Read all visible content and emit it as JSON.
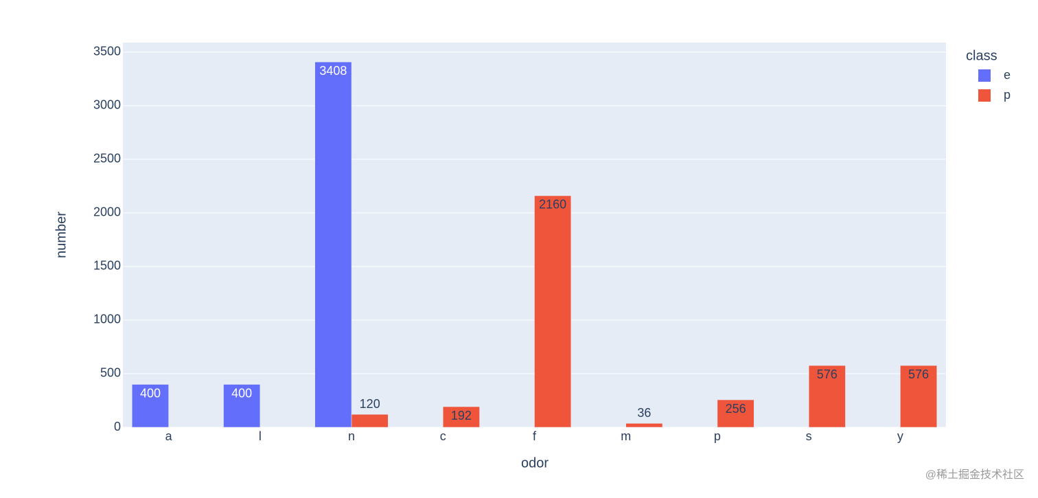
{
  "chart_data": {
    "type": "bar",
    "categories": [
      "a",
      "l",
      "n",
      "c",
      "f",
      "m",
      "p",
      "s",
      "y"
    ],
    "series": [
      {
        "name": "e",
        "color": "#636efa",
        "values": [
          400,
          400,
          3408,
          null,
          null,
          null,
          null,
          null,
          null
        ]
      },
      {
        "name": "p",
        "color": "#ef553b",
        "values": [
          null,
          null,
          120,
          192,
          2160,
          36,
          256,
          576,
          576
        ]
      }
    ],
    "x_label": "odor",
    "y_label": "number",
    "legend_title": "class",
    "ylim": [
      0,
      3589
    ],
    "yticks": [
      0,
      500,
      1000,
      1500,
      2000,
      2500,
      3000,
      3500
    ],
    "grid": true,
    "legend": "right",
    "watermark": "@稀土掘金技术社区"
  }
}
